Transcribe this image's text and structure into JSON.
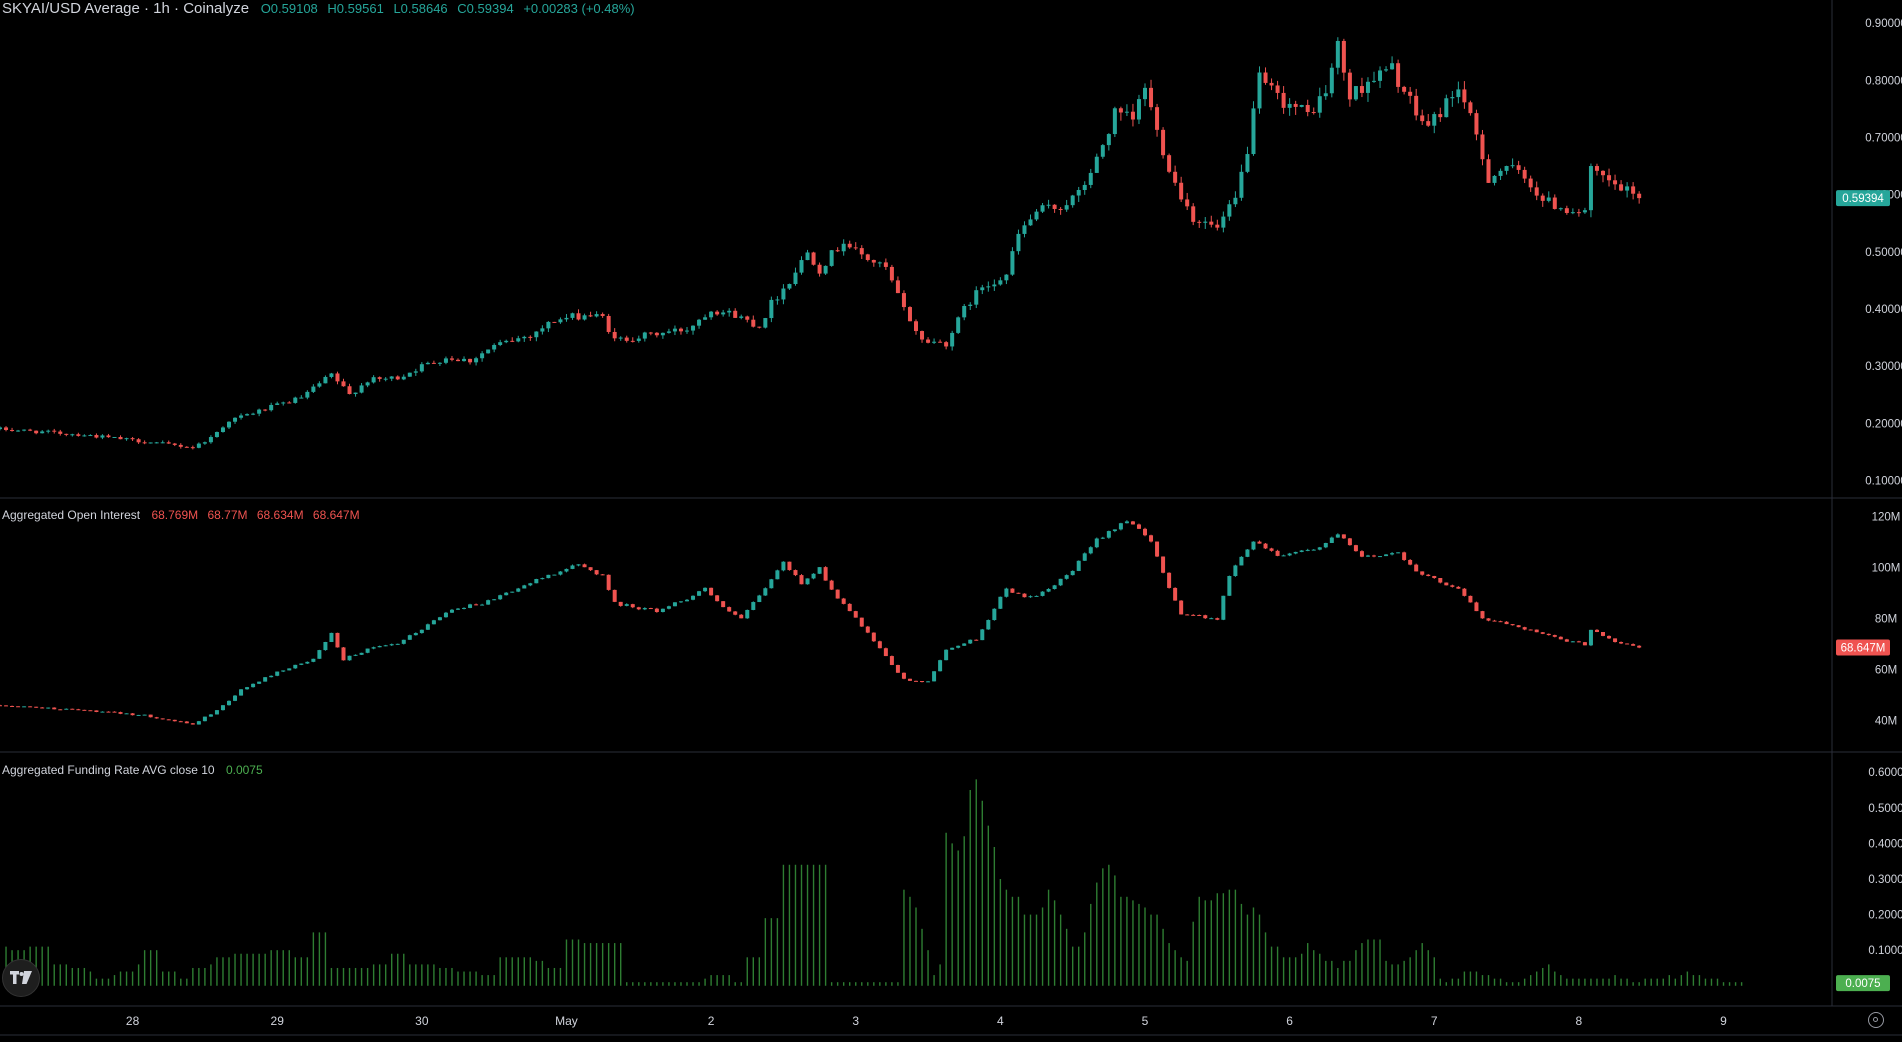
{
  "header": {
    "symbol_title": "SKYAI/USD Average · 1h · Coinalyze",
    "open": "O0.59108",
    "high": "H0.59561",
    "low": "L0.58646",
    "close": "C0.59394",
    "change": "+0.00283 (+0.48%)"
  },
  "open_interest_legend": {
    "title": "Aggregated Open Interest",
    "values": [
      "68.769M",
      "68.77M",
      "68.634M",
      "68.647M"
    ]
  },
  "funding_legend": {
    "title": "Aggregated Funding Rate AVG close 10",
    "value": "0.0075"
  },
  "badges": {
    "price": "0.59394",
    "open_interest": "68.647M",
    "funding": "0.0075"
  },
  "colors": {
    "up": "#26a69a",
    "down": "#ef5350",
    "funding_bar": "#2e7d32",
    "funding_badge": "#4caf50",
    "grid": "#2a2e39",
    "axis_text": "#d1d4dc",
    "background": "#000000"
  },
  "x_axis": {
    "ticks": [
      {
        "label": "28",
        "t": 8
      },
      {
        "label": "29",
        "t": 32
      },
      {
        "label": "30",
        "t": 56
      },
      {
        "label": "May",
        "t": 80
      },
      {
        "label": "2",
        "t": 104
      },
      {
        "label": "3",
        "t": 128
      },
      {
        "label": "4",
        "t": 152
      },
      {
        "label": "5",
        "t": 176
      },
      {
        "label": "6",
        "t": 200
      },
      {
        "label": "7",
        "t": 224
      },
      {
        "label": "8",
        "t": 248
      },
      {
        "label": "9",
        "t": 272
      }
    ],
    "t_range": [
      -14,
      290
    ]
  },
  "chart_data": [
    {
      "type": "candlestick",
      "name": "SKYAI/USD Average",
      "ylim": [
        0.08,
        0.93
      ],
      "y_ticks": [
        "0.10000",
        "0.20000",
        "0.30000",
        "0.40000",
        "0.50000",
        "0.60000",
        "0.70000",
        "0.80000",
        "0.90000"
      ],
      "keypoints": [
        {
          "t": -14,
          "v": 0.19
        },
        {
          "t": 0,
          "v": 0.18
        },
        {
          "t": 10,
          "v": 0.168
        },
        {
          "t": 18,
          "v": 0.158
        },
        {
          "t": 21,
          "v": 0.175
        },
        {
          "t": 24,
          "v": 0.205
        },
        {
          "t": 30,
          "v": 0.225
        },
        {
          "t": 36,
          "v": 0.245
        },
        {
          "t": 41,
          "v": 0.285
        },
        {
          "t": 44,
          "v": 0.25
        },
        {
          "t": 47,
          "v": 0.275
        },
        {
          "t": 52,
          "v": 0.28
        },
        {
          "t": 56,
          "v": 0.3
        },
        {
          "t": 60,
          "v": 0.315
        },
        {
          "t": 64,
          "v": 0.31
        },
        {
          "t": 68,
          "v": 0.335
        },
        {
          "t": 74,
          "v": 0.355
        },
        {
          "t": 78,
          "v": 0.38
        },
        {
          "t": 83,
          "v": 0.39
        },
        {
          "t": 86,
          "v": 0.385
        },
        {
          "t": 88,
          "v": 0.345
        },
        {
          "t": 94,
          "v": 0.355
        },
        {
          "t": 100,
          "v": 0.365
        },
        {
          "t": 104,
          "v": 0.4
        },
        {
          "t": 108,
          "v": 0.39
        },
        {
          "t": 112,
          "v": 0.37
        },
        {
          "t": 114,
          "v": 0.41
        },
        {
          "t": 117,
          "v": 0.45
        },
        {
          "t": 120,
          "v": 0.5
        },
        {
          "t": 122,
          "v": 0.47
        },
        {
          "t": 126,
          "v": 0.52
        },
        {
          "t": 128,
          "v": 0.5
        },
        {
          "t": 133,
          "v": 0.47
        },
        {
          "t": 136,
          "v": 0.4
        },
        {
          "t": 139,
          "v": 0.345
        },
        {
          "t": 143,
          "v": 0.34
        },
        {
          "t": 146,
          "v": 0.4
        },
        {
          "t": 149,
          "v": 0.44
        },
        {
          "t": 153,
          "v": 0.46
        },
        {
          "t": 155,
          "v": 0.53
        },
        {
          "t": 158,
          "v": 0.57
        },
        {
          "t": 162,
          "v": 0.58
        },
        {
          "t": 165,
          "v": 0.6
        },
        {
          "t": 168,
          "v": 0.66
        },
        {
          "t": 171,
          "v": 0.74
        },
        {
          "t": 174,
          "v": 0.73
        },
        {
          "t": 176,
          "v": 0.79
        },
        {
          "t": 178,
          "v": 0.71
        },
        {
          "t": 181,
          "v": 0.62
        },
        {
          "t": 184,
          "v": 0.56
        },
        {
          "t": 188,
          "v": 0.54
        },
        {
          "t": 191,
          "v": 0.59
        },
        {
          "t": 193,
          "v": 0.68
        },
        {
          "t": 195,
          "v": 0.8
        },
        {
          "t": 198,
          "v": 0.77
        },
        {
          "t": 203,
          "v": 0.74
        },
        {
          "t": 206,
          "v": 0.78
        },
        {
          "t": 208,
          "v": 0.86
        },
        {
          "t": 210,
          "v": 0.77
        },
        {
          "t": 213,
          "v": 0.8
        },
        {
          "t": 217,
          "v": 0.82
        },
        {
          "t": 221,
          "v": 0.74
        },
        {
          "t": 223,
          "v": 0.72
        },
        {
          "t": 226,
          "v": 0.76
        },
        {
          "t": 228,
          "v": 0.79
        },
        {
          "t": 231,
          "v": 0.7
        },
        {
          "t": 233,
          "v": 0.63
        },
        {
          "t": 236,
          "v": 0.65
        },
        {
          "t": 240,
          "v": 0.62
        },
        {
          "t": 242,
          "v": 0.59
        },
        {
          "t": 246,
          "v": 0.575
        },
        {
          "t": 249,
          "v": 0.57
        },
        {
          "t": 250,
          "v": 0.64
        },
        {
          "t": 254,
          "v": 0.615
        },
        {
          "t": 258,
          "v": 0.594
        }
      ]
    },
    {
      "type": "candlestick",
      "name": "Aggregated Open Interest",
      "ylim": [
        30,
        125
      ],
      "y_ticks": [
        "40M",
        "60M",
        "80M",
        "100M",
        "120M"
      ],
      "keypoints": [
        {
          "t": -14,
          "v": 46
        },
        {
          "t": 0,
          "v": 44
        },
        {
          "t": 10,
          "v": 42
        },
        {
          "t": 18,
          "v": 38.5
        },
        {
          "t": 22,
          "v": 44
        },
        {
          "t": 26,
          "v": 52
        },
        {
          "t": 32,
          "v": 59
        },
        {
          "t": 38,
          "v": 64
        },
        {
          "t": 41,
          "v": 74
        },
        {
          "t": 43,
          "v": 64
        },
        {
          "t": 47,
          "v": 68
        },
        {
          "t": 52,
          "v": 70
        },
        {
          "t": 56,
          "v": 76
        },
        {
          "t": 61,
          "v": 84
        },
        {
          "t": 66,
          "v": 86
        },
        {
          "t": 72,
          "v": 92
        },
        {
          "t": 78,
          "v": 98
        },
        {
          "t": 82,
          "v": 101
        },
        {
          "t": 86,
          "v": 97
        },
        {
          "t": 88,
          "v": 86
        },
        {
          "t": 95,
          "v": 83
        },
        {
          "t": 100,
          "v": 88
        },
        {
          "t": 103,
          "v": 92
        },
        {
          "t": 106,
          "v": 84
        },
        {
          "t": 109,
          "v": 80
        },
        {
          "t": 113,
          "v": 92
        },
        {
          "t": 116,
          "v": 102
        },
        {
          "t": 119,
          "v": 94
        },
        {
          "t": 122,
          "v": 100
        },
        {
          "t": 124,
          "v": 91
        },
        {
          "t": 128,
          "v": 80
        },
        {
          "t": 134,
          "v": 62
        },
        {
          "t": 136,
          "v": 56
        },
        {
          "t": 140,
          "v": 55
        },
        {
          "t": 143,
          "v": 68
        },
        {
          "t": 148,
          "v": 72
        },
        {
          "t": 153,
          "v": 92
        },
        {
          "t": 156,
          "v": 88
        },
        {
          "t": 160,
          "v": 91
        },
        {
          "t": 164,
          "v": 99
        },
        {
          "t": 168,
          "v": 111
        },
        {
          "t": 173,
          "v": 119
        },
        {
          "t": 177,
          "v": 110
        },
        {
          "t": 179,
          "v": 98
        },
        {
          "t": 182,
          "v": 82
        },
        {
          "t": 188,
          "v": 80
        },
        {
          "t": 190,
          "v": 97
        },
        {
          "t": 194,
          "v": 111
        },
        {
          "t": 198,
          "v": 105
        },
        {
          "t": 205,
          "v": 108
        },
        {
          "t": 208,
          "v": 113
        },
        {
          "t": 212,
          "v": 104
        },
        {
          "t": 218,
          "v": 106
        },
        {
          "t": 222,
          "v": 97
        },
        {
          "t": 228,
          "v": 92
        },
        {
          "t": 232,
          "v": 80
        },
        {
          "t": 238,
          "v": 77
        },
        {
          "t": 242,
          "v": 74
        },
        {
          "t": 246,
          "v": 71
        },
        {
          "t": 249,
          "v": 70
        },
        {
          "t": 250,
          "v": 76
        },
        {
          "t": 254,
          "v": 71
        },
        {
          "t": 258,
          "v": 68.647
        }
      ]
    },
    {
      "type": "bar",
      "name": "Aggregated Funding Rate AVG close 10",
      "ylim": [
        -0.04,
        0.64
      ],
      "y_ticks": [
        "0.1000",
        "0.2000",
        "0.3000",
        "0.4000",
        "0.5000",
        "0.6000"
      ],
      "x_start": -13,
      "step": 1,
      "values": [
        0.11,
        0.1,
        0.1,
        0.1,
        0.11,
        0.11,
        0.11,
        0.11,
        0.06,
        0.06,
        0.06,
        0.05,
        0.05,
        0.05,
        0.04,
        0.02,
        0.02,
        0.02,
        0.03,
        0.04,
        0.04,
        0.04,
        0.06,
        0.1,
        0.1,
        0.1,
        0.04,
        0.04,
        0.04,
        0.02,
        0.02,
        0.05,
        0.05,
        0.05,
        0.06,
        0.08,
        0.08,
        0.08,
        0.09,
        0.09,
        0.09,
        0.09,
        0.09,
        0.09,
        0.1,
        0.1,
        0.1,
        0.1,
        0.08,
        0.08,
        0.08,
        0.15,
        0.15,
        0.15,
        0.05,
        0.05,
        0.05,
        0.05,
        0.05,
        0.05,
        0.05,
        0.06,
        0.06,
        0.06,
        0.09,
        0.09,
        0.09,
        0.06,
        0.06,
        0.06,
        0.06,
        0.06,
        0.05,
        0.05,
        0.05,
        0.04,
        0.04,
        0.04,
        0.04,
        0.03,
        0.03,
        0.03,
        0.08,
        0.08,
        0.08,
        0.08,
        0.08,
        0.08,
        0.07,
        0.07,
        0.05,
        0.05,
        0.05,
        0.13,
        0.13,
        0.13,
        0.12,
        0.12,
        0.12,
        0.12,
        0.12,
        0.12,
        0.12,
        0.01,
        0.01,
        0.01,
        0.01,
        0.01,
        0.01,
        0.01,
        0.01,
        0.01,
        0.01,
        0.01,
        0.01,
        0.01,
        0.02,
        0.03,
        0.03,
        0.03,
        0.03,
        0.01,
        0.01,
        0.08,
        0.08,
        0.08,
        0.19,
        0.19,
        0.19,
        0.34,
        0.34,
        0.34,
        0.34,
        0.34,
        0.34,
        0.34,
        0.34,
        0.01,
        0.01,
        0.01,
        0.01,
        0.01,
        0.01,
        0.01,
        0.01,
        0.01,
        0.01,
        0.01,
        0.01,
        0.27,
        0.25,
        0.22,
        0.16,
        0.1,
        0.03,
        0.06,
        0.43,
        0.4,
        0.38,
        0.42,
        0.55,
        0.58,
        0.52,
        0.45,
        0.39,
        0.3,
        0.27,
        0.25,
        0.25,
        0.2,
        0.2,
        0.2,
        0.22,
        0.27,
        0.24,
        0.2,
        0.16,
        0.11,
        0.11,
        0.15,
        0.23,
        0.29,
        0.33,
        0.34,
        0.31,
        0.25,
        0.25,
        0.24,
        0.23,
        0.22,
        0.2,
        0.2,
        0.16,
        0.12,
        0.1,
        0.08,
        0.07,
        0.18,
        0.25,
        0.24,
        0.24,
        0.26,
        0.26,
        0.27,
        0.27,
        0.23,
        0.2,
        0.22,
        0.2,
        0.15,
        0.11,
        0.11,
        0.08,
        0.08,
        0.08,
        0.09,
        0.12,
        0.1,
        0.09,
        0.07,
        0.07,
        0.05,
        0.07,
        0.07,
        0.1,
        0.12,
        0.13,
        0.13,
        0.13,
        0.07,
        0.06,
        0.06,
        0.07,
        0.08,
        0.1,
        0.12,
        0.1,
        0.08,
        0.02,
        0.01,
        0.02,
        0.02,
        0.04,
        0.04,
        0.04,
        0.03,
        0.03,
        0.02,
        0.02,
        0.01,
        0.01,
        0.01,
        0.02,
        0.03,
        0.04,
        0.05,
        0.06,
        0.04,
        0.03,
        0.02,
        0.02,
        0.02,
        0.02,
        0.02,
        0.02,
        0.02,
        0.02,
        0.03,
        0.02,
        0.02,
        0.01,
        0.01,
        0.02,
        0.02,
        0.02,
        0.02,
        0.03,
        0.02,
        0.03,
        0.04,
        0.03,
        0.03,
        0.02,
        0.02,
        0.02,
        0.01,
        0.01,
        0.01,
        0.01
      ]
    }
  ]
}
